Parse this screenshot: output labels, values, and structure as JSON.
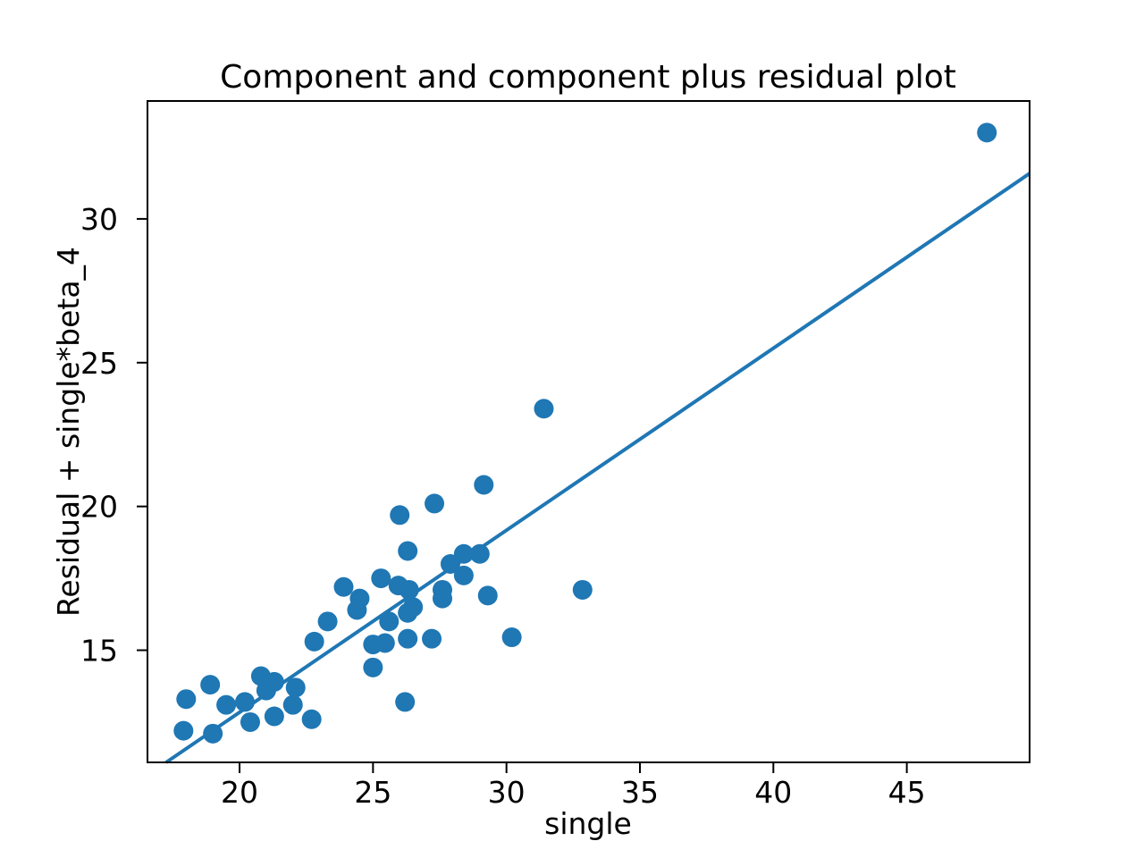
{
  "chart_data": {
    "type": "scatter",
    "title": "Component and component plus residual plot",
    "xlabel": "single",
    "ylabel": "Residual + single*beta_4",
    "xlim": [
      16.55,
      49.6
    ],
    "ylim": [
      11.1,
      34.1
    ],
    "x_ticks": [
      20,
      25,
      30,
      35,
      40,
      45
    ],
    "y_ticks": [
      15,
      20,
      25,
      30
    ],
    "legend": "none",
    "grid": false,
    "marker_color": "#1f77b4",
    "line_color": "#1f77b4",
    "spine_color": "#000000",
    "points": [
      [
        17.9,
        12.2
      ],
      [
        18.0,
        13.3
      ],
      [
        18.9,
        13.8
      ],
      [
        19.0,
        12.1
      ],
      [
        19.5,
        13.1
      ],
      [
        20.2,
        13.2
      ],
      [
        20.4,
        12.5
      ],
      [
        20.8,
        14.1
      ],
      [
        21.0,
        13.6
      ],
      [
        21.3,
        13.9
      ],
      [
        21.3,
        12.7
      ],
      [
        22.0,
        13.1
      ],
      [
        22.1,
        13.7
      ],
      [
        22.7,
        12.6
      ],
      [
        22.8,
        15.3
      ],
      [
        23.3,
        16.0
      ],
      [
        23.9,
        17.2
      ],
      [
        24.4,
        16.4
      ],
      [
        24.5,
        16.8
      ],
      [
        25.0,
        14.4
      ],
      [
        25.0,
        15.2
      ],
      [
        25.45,
        15.25
      ],
      [
        25.3,
        17.5
      ],
      [
        25.6,
        16.0
      ],
      [
        25.95,
        17.25
      ],
      [
        26.35,
        17.1
      ],
      [
        26.2,
        13.2
      ],
      [
        26.3,
        15.4
      ],
      [
        26.3,
        16.3
      ],
      [
        26.5,
        16.5
      ],
      [
        26.0,
        19.7
      ],
      [
        26.3,
        18.45
      ],
      [
        27.2,
        15.4
      ],
      [
        27.3,
        20.1
      ],
      [
        27.6,
        17.1
      ],
      [
        27.6,
        16.8
      ],
      [
        27.9,
        18.0
      ],
      [
        28.4,
        18.35
      ],
      [
        29.0,
        18.35
      ],
      [
        28.4,
        17.6
      ],
      [
        29.15,
        20.75
      ],
      [
        29.3,
        16.9
      ],
      [
        30.2,
        15.45
      ],
      [
        31.4,
        23.4
      ],
      [
        32.85,
        17.1
      ],
      [
        48.0,
        33.0
      ]
    ],
    "fit_line": {
      "slope": 0.633,
      "intercept": 0.19,
      "x_start": 17.25,
      "y_start": 11.1,
      "x_end": 49.6,
      "y_end": 31.58
    }
  }
}
